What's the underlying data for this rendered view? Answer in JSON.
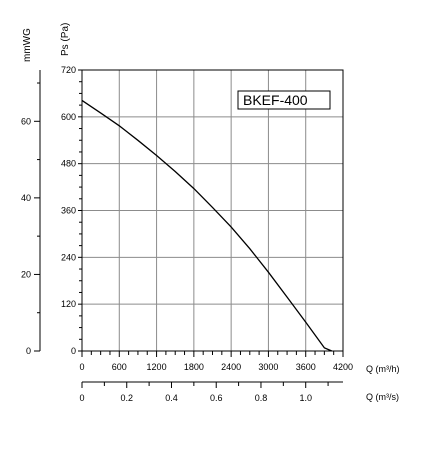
{
  "chart_data": {
    "type": "line",
    "title": "",
    "legend_box": "BKEF-400",
    "x_primary": {
      "label": "Q (m³/h)",
      "range": [
        0,
        4200
      ],
      "ticks": [
        0,
        600,
        1200,
        1800,
        2400,
        3000,
        3600,
        4200
      ],
      "tick_labels": [
        "0",
        "600",
        "1200",
        "1800",
        "2400",
        "3000",
        "3600",
        "4200"
      ]
    },
    "x_secondary": {
      "label": "Q (m³/s)",
      "range": [
        0,
        1.1667
      ],
      "ticks": [
        0,
        0.2,
        0.4,
        0.6,
        0.8,
        1.0
      ],
      "tick_labels": [
        "0",
        "0.2",
        "0.4",
        "0.6",
        "0.8",
        "1.0"
      ]
    },
    "y_primary": {
      "label": "Ps (Pa)",
      "range": [
        0,
        720
      ],
      "ticks": [
        0,
        120,
        240,
        360,
        480,
        600,
        720
      ],
      "tick_labels": [
        "0",
        "120",
        "240",
        "360",
        "480",
        "600",
        "720"
      ]
    },
    "y_secondary": {
      "label": "mmWG",
      "range": [
        0,
        73.4
      ],
      "ticks": [
        0,
        20,
        40,
        60
      ],
      "tick_labels": [
        "0",
        "20",
        "40",
        "60"
      ]
    },
    "grid": true,
    "series": [
      {
        "x": [
          0,
          300,
          600,
          900,
          1200,
          1500,
          1800,
          2100,
          2400,
          2700,
          3000,
          3300,
          3600,
          3900,
          4020
        ],
        "y": [
          642,
          610,
          577,
          540,
          501,
          460,
          416,
          368,
          318,
          262,
          202,
          138,
          74,
          8,
          0
        ]
      }
    ]
  }
}
